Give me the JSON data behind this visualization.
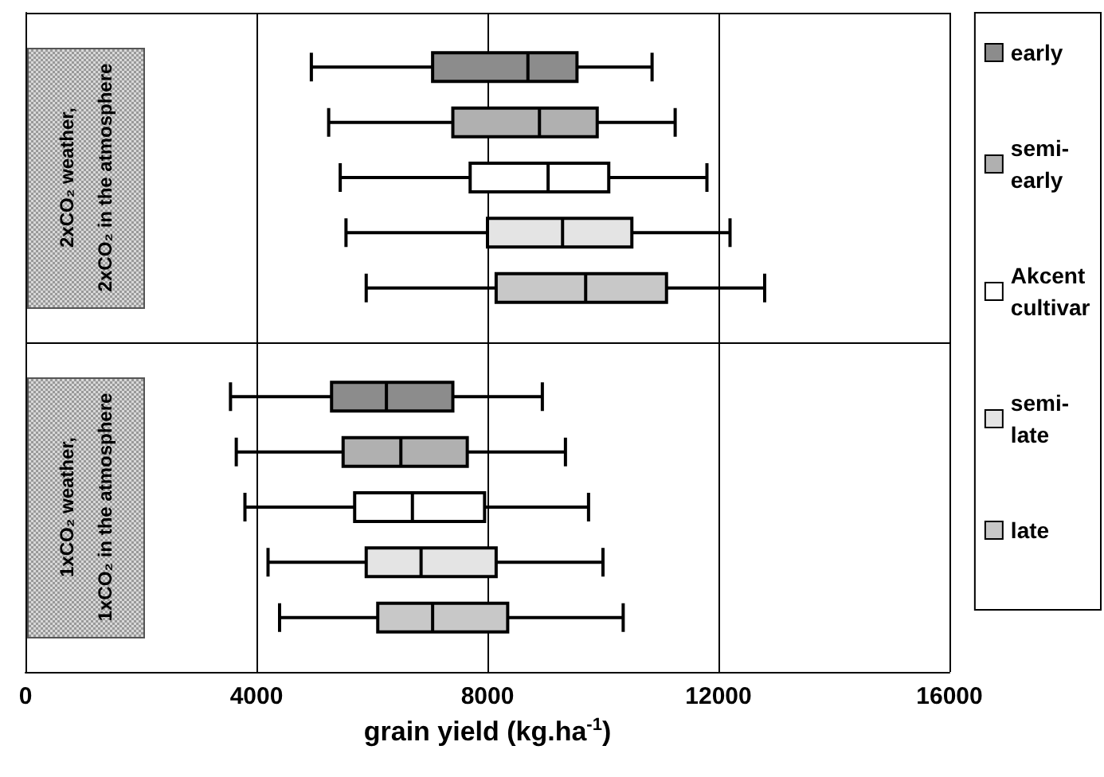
{
  "chart_data": {
    "type": "box",
    "orientation": "horizontal",
    "categories": [
      "2xCO₂ weather,\n2xCO₂ in the atmosphere",
      "1xCO₂ weather,\n1xCO₂ in the atmosphere"
    ],
    "series": [
      {
        "name": "early",
        "color": "#8c8c8c",
        "boxes": [
          {
            "low": 4950,
            "q1": 7050,
            "median": 8700,
            "q3": 9550,
            "high": 10850
          },
          {
            "low": 3550,
            "q1": 5300,
            "median": 6250,
            "q3": 7400,
            "high": 8950
          }
        ]
      },
      {
        "name": "semi-early",
        "color": "#b0b0b0",
        "boxes": [
          {
            "low": 5250,
            "q1": 7400,
            "median": 8900,
            "q3": 9900,
            "high": 11250
          },
          {
            "low": 3650,
            "q1": 5500,
            "median": 6500,
            "q3": 7650,
            "high": 9350
          }
        ]
      },
      {
        "name": "Akcent cultivar",
        "color": "#ffffff",
        "boxes": [
          {
            "low": 5450,
            "q1": 7700,
            "median": 9050,
            "q3": 10100,
            "high": 11800
          },
          {
            "low": 3800,
            "q1": 5700,
            "median": 6700,
            "q3": 7950,
            "high": 9750
          }
        ]
      },
      {
        "name": "semi-late",
        "color": "#e4e4e4",
        "boxes": [
          {
            "low": 5550,
            "q1": 8000,
            "median": 9300,
            "q3": 10500,
            "high": 12200
          },
          {
            "low": 4200,
            "q1": 5900,
            "median": 6850,
            "q3": 8150,
            "high": 10000
          }
        ]
      },
      {
        "name": "late",
        "color": "#c8c8c8",
        "boxes": [
          {
            "low": 5900,
            "q1": 8150,
            "median": 9700,
            "q3": 11100,
            "high": 12800
          },
          {
            "low": 4400,
            "q1": 6100,
            "median": 7050,
            "q3": 8350,
            "high": 10350
          }
        ]
      }
    ],
    "xlabel": "grain yield (kg.ha$^{-1}$)",
    "xlim": [
      0,
      16000
    ],
    "xticks": [
      0,
      4000,
      8000,
      12000,
      16000
    ],
    "grid": true,
    "legend": "right"
  }
}
